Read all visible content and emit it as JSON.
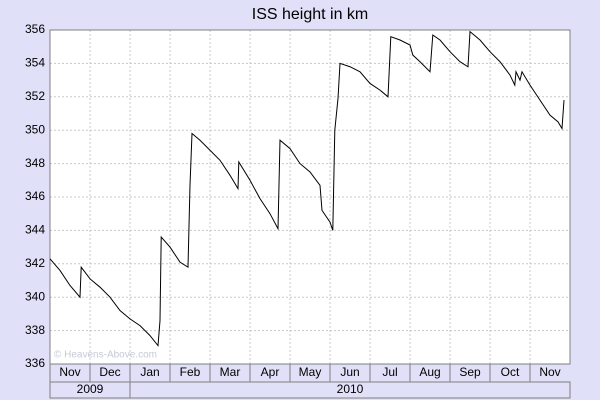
{
  "chart_data": {
    "type": "line",
    "title": "ISS height in km",
    "watermark": "© Heavens-Above.com",
    "x": [
      0,
      0.25,
      0.5,
      0.75,
      0.78,
      1.0,
      1.25,
      1.5,
      1.75,
      2.0,
      2.25,
      2.5,
      2.7,
      2.75,
      2.78,
      3.0,
      3.25,
      3.45,
      3.5,
      3.55,
      3.75,
      4.0,
      4.25,
      4.5,
      4.7,
      4.72,
      5.0,
      5.25,
      5.5,
      5.7,
      5.75,
      6.0,
      6.25,
      6.5,
      6.75,
      6.8,
      7.0,
      7.07,
      7.12,
      7.2,
      7.25,
      7.5,
      7.75,
      8.0,
      8.25,
      8.45,
      8.52,
      8.75,
      9.0,
      9.07,
      9.25,
      9.5,
      9.57,
      9.75,
      10.0,
      10.25,
      10.45,
      10.5,
      10.75,
      11.0,
      11.25,
      11.5,
      11.62,
      11.65,
      11.75,
      11.8,
      12.0,
      12.25,
      12.5,
      12.7,
      12.8,
      12.85
    ],
    "series": [
      {
        "name": "ISS height",
        "color": "#000000",
        "values": [
          342.3,
          341.6,
          340.7,
          340.0,
          341.8,
          341.1,
          340.6,
          340.0,
          339.2,
          338.7,
          338.3,
          337.7,
          337.1,
          338.6,
          343.6,
          343.0,
          342.1,
          341.8,
          346.7,
          349.8,
          349.4,
          348.8,
          348.2,
          347.3,
          346.5,
          348.1,
          347.0,
          345.9,
          345.0,
          344.1,
          349.4,
          348.9,
          348.0,
          347.5,
          346.7,
          345.2,
          344.5,
          344.0,
          350.0,
          351.9,
          354.0,
          353.8,
          353.5,
          352.8,
          352.4,
          352.0,
          355.6,
          355.4,
          355.1,
          354.5,
          354.1,
          353.5,
          355.7,
          355.4,
          354.7,
          354.1,
          353.8,
          355.9,
          355.4,
          354.7,
          354.1,
          353.3,
          352.7,
          353.5,
          353.0,
          353.5,
          352.7,
          351.8,
          350.9,
          350.5,
          350.1,
          351.8
        ]
      }
    ],
    "xlim": [
      0,
      13
    ],
    "xticks": [
      {
        "value": 0,
        "label": "Nov"
      },
      {
        "value": 1,
        "label": "Dec"
      },
      {
        "value": 2,
        "label": "Jan"
      },
      {
        "value": 3,
        "label": "Feb"
      },
      {
        "value": 4,
        "label": "Mar"
      },
      {
        "value": 5,
        "label": "Apr"
      },
      {
        "value": 6,
        "label": "May"
      },
      {
        "value": 7,
        "label": "Jun"
      },
      {
        "value": 8,
        "label": "Jul"
      },
      {
        "value": 9,
        "label": "Aug"
      },
      {
        "value": 10,
        "label": "Sep"
      },
      {
        "value": 11,
        "label": "Oct"
      },
      {
        "value": 12,
        "label": "Nov"
      }
    ],
    "years": [
      {
        "label": "2009",
        "span": [
          0,
          2
        ]
      },
      {
        "label": "2010",
        "span": [
          2,
          13
        ]
      }
    ],
    "ylim": [
      336,
      356
    ],
    "yticks": [
      336,
      338,
      340,
      342,
      344,
      346,
      348,
      350,
      352,
      354,
      356
    ],
    "grid": true
  }
}
